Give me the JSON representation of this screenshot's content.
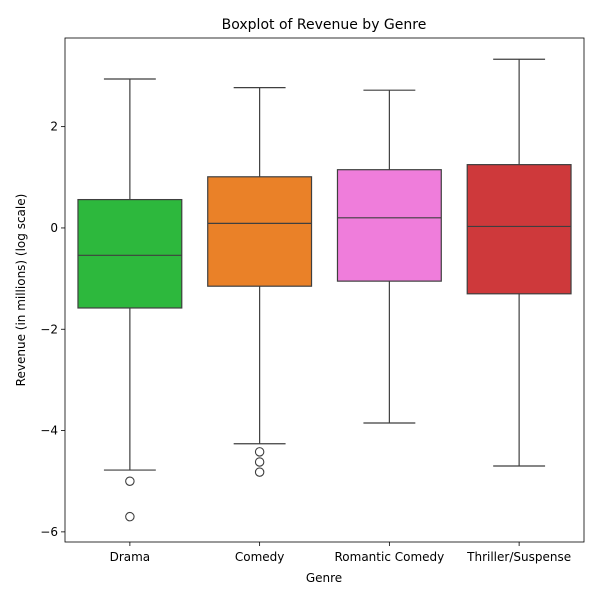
{
  "chart_data": {
    "type": "boxplot",
    "title": "Boxplot of Revenue by Genre",
    "xlabel": "Genre",
    "ylabel": "Revenue (in millions) (log scale)",
    "ylim": [
      -6.2,
      3.75
    ],
    "yticks": [
      -6,
      -4,
      -2,
      0,
      2
    ],
    "ytick_labels": [
      "−6",
      "−4",
      "−2",
      "0",
      "2"
    ],
    "grid": false,
    "categories": [
      "Drama",
      "Comedy",
      "Romantic Comedy",
      "Thriller/Suspense"
    ],
    "boxes": [
      {
        "genre": "Drama",
        "color": "#2db83d",
        "whisker_low": -4.78,
        "q1": -1.58,
        "median": -0.54,
        "q3": 0.56,
        "whisker_high": 2.94,
        "outliers": [
          -5.0,
          -5.7
        ]
      },
      {
        "genre": "Comedy",
        "color": "#ea8128",
        "whisker_low": -4.26,
        "q1": -1.15,
        "median": 0.09,
        "q3": 1.01,
        "whisker_high": 2.77,
        "outliers": [
          -4.42,
          -4.62,
          -4.82
        ]
      },
      {
        "genre": "Romantic Comedy",
        "color": "#ef7ddb",
        "whisker_low": -3.85,
        "q1": -1.05,
        "median": 0.2,
        "q3": 1.15,
        "whisker_high": 2.72,
        "outliers": []
      },
      {
        "genre": "Thriller/Suspense",
        "color": "#ce393b",
        "whisker_low": -4.7,
        "q1": -1.3,
        "median": 0.03,
        "q3": 1.25,
        "whisker_high": 3.33,
        "outliers": []
      }
    ]
  }
}
